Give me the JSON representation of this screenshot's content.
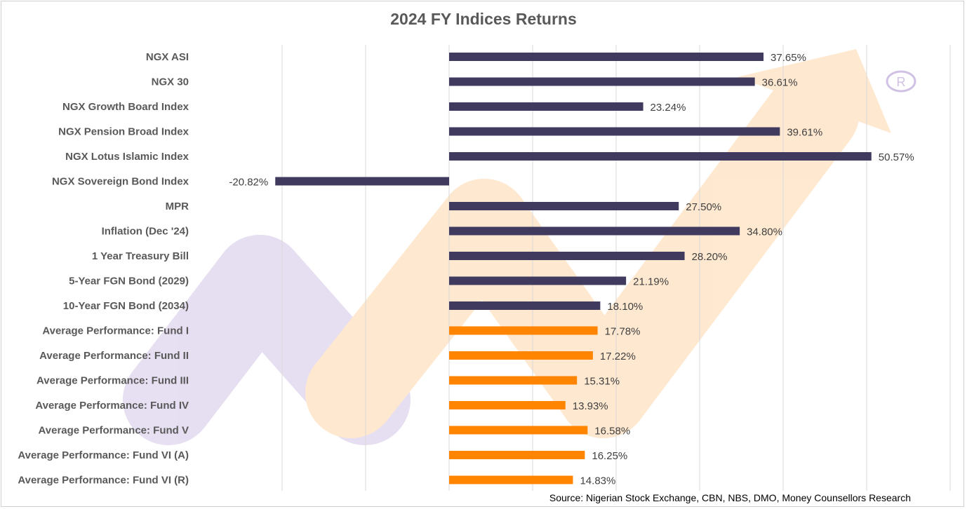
{
  "chart_data": {
    "type": "bar",
    "orientation": "horizontal",
    "title": "2024 FY Indices Returns",
    "categories": [
      "NGX ASI",
      "NGX 30",
      "NGX Growth Board Index",
      "NGX Pension Broad Index",
      "NGX Lotus Islamic Index",
      "NGX Sovereign Bond Index",
      "MPR",
      "Inflation (Dec '24)",
      "1 Year Treasury Bill",
      "5-Year FGN Bond (2029)",
      "10-Year FGN Bond (2034)",
      "Average Performance: Fund I",
      "Average Performance: Fund II",
      "Average Performance: Fund III",
      "Average Performance: Fund IV",
      "Average Performance: Fund V",
      "Average Performance: Fund VI (A)",
      "Average Performance: Fund VI (R)"
    ],
    "values": [
      37.65,
      36.61,
      23.24,
      39.61,
      50.57,
      -20.82,
      27.5,
      34.8,
      28.2,
      21.19,
      18.1,
      17.78,
      17.22,
      15.31,
      13.93,
      16.58,
      16.25,
      14.83
    ],
    "data_labels": [
      "37.65%",
      "36.61%",
      "23.24%",
      "39.61%",
      "50.57%",
      "-20.82%",
      "27.50%",
      "34.80%",
      "28.20%",
      "21.19%",
      "18.10%",
      "17.78%",
      "17.22%",
      "15.31%",
      "13.93%",
      "16.58%",
      "16.25%",
      "14.83%"
    ],
    "bar_colors": [
      "#3f3a5e",
      "#3f3a5e",
      "#3f3a5e",
      "#3f3a5e",
      "#3f3a5e",
      "#3f3a5e",
      "#3f3a5e",
      "#3f3a5e",
      "#3f3a5e",
      "#3f3a5e",
      "#3f3a5e",
      "#ff8500",
      "#ff8500",
      "#ff8500",
      "#ff8500",
      "#ff8500",
      "#ff8500",
      "#ff8500"
    ],
    "xlim": [
      -20,
      60
    ],
    "x_unit": "%",
    "grid": "vertical",
    "x_tick_labels_shown": false,
    "legend": "none",
    "xlabel": "",
    "ylabel": ""
  },
  "source": "Source: Nigerian Stock Exchange, CBN, NBS, DMO, Money Counsellors Research"
}
